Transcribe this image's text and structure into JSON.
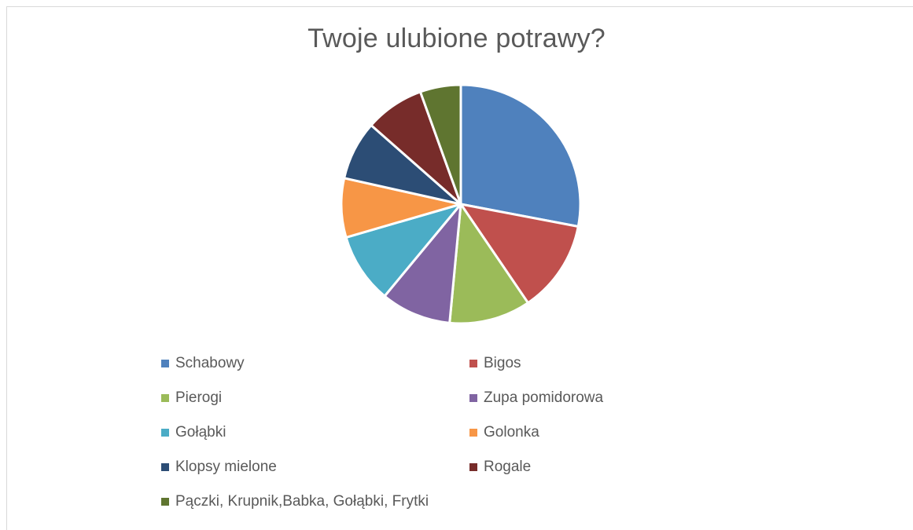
{
  "chart_data": {
    "type": "pie",
    "title": "Twoje ulubione potrawy?",
    "legend_position": "bottom",
    "slices": [
      {
        "label": "Schabowy",
        "value": 28,
        "color": "#4F81BD"
      },
      {
        "label": "Bigos",
        "value": 12.5,
        "color": "#C0504D"
      },
      {
        "label": "Pierogi",
        "value": 11,
        "color": "#9BBB59"
      },
      {
        "label": "Zupa pomidorowa",
        "value": 9.5,
        "color": "#8064A2"
      },
      {
        "label": "Gołąbki",
        "value": 9.5,
        "color": "#4BACC6"
      },
      {
        "label": "Golonka",
        "value": 8,
        "color": "#F79646"
      },
      {
        "label": "Klopsy mielone",
        "value": 8,
        "color": "#2C4D75"
      },
      {
        "label": "Rogale",
        "value": 8,
        "color": "#772C2A"
      },
      {
        "label": "Pączki, Krupnik,Babka, Gołąbki, Frytki",
        "value": 5.5,
        "color": "#5F7530"
      }
    ]
  }
}
